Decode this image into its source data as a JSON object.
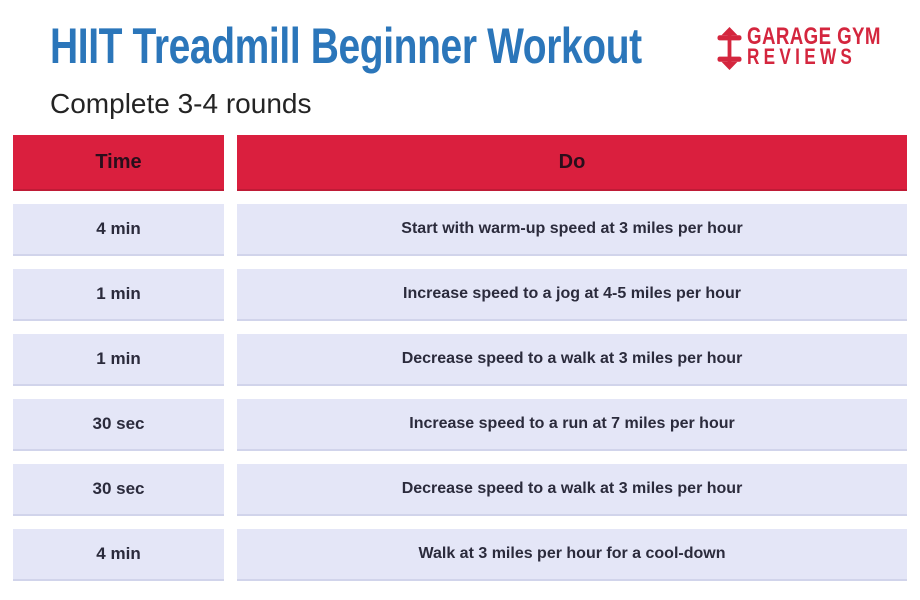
{
  "page": {
    "title": "HIIT Treadmill Beginner Workout",
    "subtitle": "Complete 3-4 rounds"
  },
  "logo": {
    "line1": "GARAGE GYM",
    "line2": "REVIEWS",
    "icon": "dumbbell-up-down-arrow-icon"
  },
  "colors": {
    "title-blue": "#2B76BA",
    "logo-red": "#D4263E",
    "header-red": "#DA1F3E",
    "header-text": "#2A0E1B",
    "row-bg": "#E4E6F7",
    "row-text": "#2B2B3C",
    "subtitle-text": "#242424"
  },
  "chart_data": {
    "type": "table",
    "title": "HIIT Treadmill Beginner Workout",
    "subtitle": "Complete 3-4 rounds",
    "columns": [
      "Time",
      "Do"
    ],
    "rows": [
      [
        "4 min",
        "Start with warm-up speed at 3 miles per hour"
      ],
      [
        "1 min",
        "Increase speed to a jog at 4-5 miles per hour"
      ],
      [
        "1 min",
        "Decrease speed to a walk at 3 miles per hour"
      ],
      [
        "30 sec",
        "Increase speed to a run at 7 miles per hour"
      ],
      [
        "30 sec",
        "Decrease speed to a walk at 3 miles per hour"
      ],
      [
        "4 min",
        "Walk at 3 miles per hour for a cool-down"
      ]
    ]
  }
}
